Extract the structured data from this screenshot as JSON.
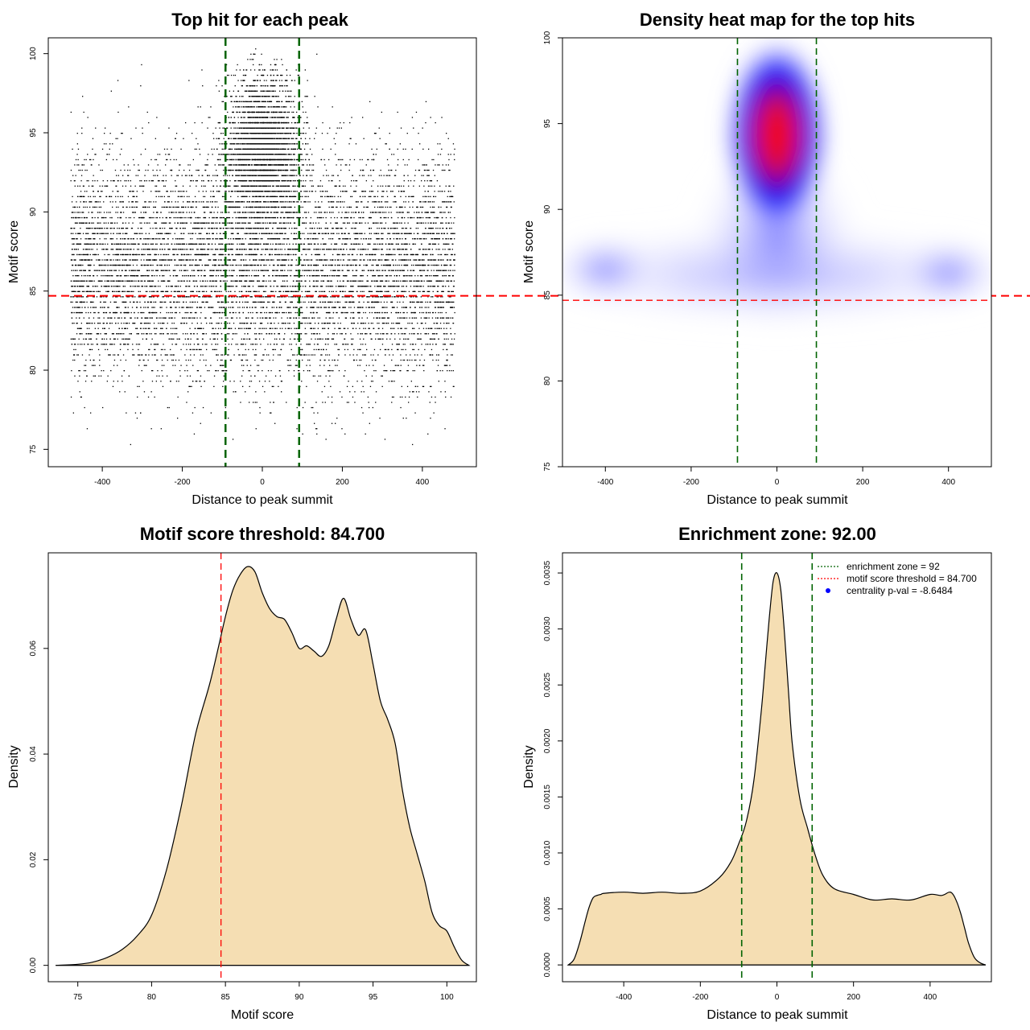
{
  "chart_data": [
    {
      "type": "scatter",
      "title": "Top hit for each peak",
      "xlabel": "Distance to peak summit",
      "ylabel": "Motif score",
      "xlim": [
        -500,
        500
      ],
      "ylim": [
        75,
        100
      ],
      "x_ticks": [
        -400,
        -200,
        0,
        200,
        400
      ],
      "y_ticks": [
        75,
        80,
        85,
        90,
        95,
        100
      ],
      "x_tick_labels": [
        "-400",
        "-200",
        "0",
        "200",
        "400"
      ],
      "y_tick_labels": [
        "75",
        "80",
        "85",
        "90",
        "95",
        "100"
      ],
      "vlines": [
        -92,
        92
      ],
      "hline": 84.7,
      "vline_color": "#006400",
      "hline_color": "#ff0000",
      "point_color": "#000000",
      "description_of_points": "approximately 20000 top motif hits; uniform background over -480..480 with a dense central cluster near 0 at scores 90-97",
      "point_density_profile": {
        "background_x_range": [
          -480,
          480
        ],
        "background_score_mode": 86.5,
        "central_cluster_x_sd": 45,
        "central_cluster_score_mode": 94
      }
    },
    {
      "type": "heatmap",
      "title": "Density heat map for the top hits",
      "xlabel": "Distance to peak summit",
      "ylabel": "Motif score",
      "xlim": [
        -500,
        500
      ],
      "ylim": [
        75,
        100
      ],
      "x_ticks": [
        -400,
        -200,
        0,
        200,
        400
      ],
      "y_ticks": [
        75,
        80,
        85,
        90,
        95,
        100
      ],
      "x_tick_labels": [
        "-400",
        "-200",
        "0",
        "200",
        "400"
      ],
      "y_tick_labels": [
        "75",
        "80",
        "85",
        "90",
        "95",
        "100"
      ],
      "vlines": [
        -92,
        92
      ],
      "hline": 84.7,
      "vline_color": "#006400",
      "hline_color": "#ff0000",
      "color_scale": [
        "#ffffff",
        "#0000ff",
        "#ff0000"
      ],
      "density_peak": {
        "x": 0,
        "y": 94.3
      },
      "secondary_density": [
        {
          "x": -400,
          "y": 86.5
        },
        {
          "x": 400,
          "y": 86.3
        }
      ]
    },
    {
      "type": "area",
      "title": "Motif score threshold: 84.700",
      "xlabel": "Motif score",
      "ylabel": "Density",
      "xlim": [
        73,
        102
      ],
      "ylim": [
        0,
        0.076
      ],
      "x_ticks": [
        75,
        80,
        85,
        90,
        95,
        100
      ],
      "y_ticks": [
        0.0,
        0.02,
        0.04,
        0.06
      ],
      "x_tick_labels": [
        "75",
        "80",
        "85",
        "90",
        "95",
        "100"
      ],
      "y_tick_labels": [
        "0.00",
        "0.02",
        "0.04",
        "0.06"
      ],
      "vline": 84.7,
      "vline_color": "#ff0000",
      "fill_color": "#f5deb3",
      "x": [
        73.5,
        75,
        76,
        77,
        78,
        79,
        80,
        81,
        82,
        83,
        84,
        85,
        85.5,
        86,
        86.5,
        87,
        87.5,
        88,
        88.5,
        89,
        89.5,
        90,
        90.5,
        91,
        91.5,
        92,
        92.5,
        93,
        93.5,
        94,
        94.5,
        95,
        95.5,
        96,
        96.5,
        97,
        97.5,
        98,
        98.5,
        99,
        99.5,
        100,
        100.5,
        101,
        101.5
      ],
      "y": [
        0.0,
        0.0002,
        0.0006,
        0.0015,
        0.003,
        0.0055,
        0.0095,
        0.018,
        0.03,
        0.044,
        0.054,
        0.066,
        0.071,
        0.074,
        0.0755,
        0.0745,
        0.0705,
        0.0675,
        0.066,
        0.0655,
        0.063,
        0.06,
        0.0605,
        0.0595,
        0.0585,
        0.0605,
        0.0655,
        0.0695,
        0.0655,
        0.0625,
        0.0635,
        0.057,
        0.05,
        0.0465,
        0.042,
        0.033,
        0.026,
        0.021,
        0.016,
        0.01,
        0.0075,
        0.0065,
        0.0035,
        0.001,
        0.0
      ]
    },
    {
      "type": "area",
      "title": "Enrichment zone: 92.00",
      "xlabel": "Distance to peak summit",
      "ylabel": "Density",
      "xlim": [
        -560,
        560
      ],
      "ylim": [
        0,
        0.0036
      ],
      "x_ticks": [
        -400,
        -200,
        0,
        200,
        400
      ],
      "y_ticks": [
        0.0,
        0.0005,
        0.001,
        0.0015,
        0.002,
        0.0025,
        0.003,
        0.0035
      ],
      "x_tick_labels": [
        "-400",
        "-200",
        "0",
        "200",
        "400"
      ],
      "y_tick_labels": [
        "0.0000",
        "0.0005",
        "0.0010",
        "0.0015",
        "0.0020",
        "0.0025",
        "0.0030",
        "0.0035"
      ],
      "vlines": [
        -92,
        92
      ],
      "vline_color": "#006400",
      "fill_color": "#f5deb3",
      "x": [
        -545,
        -530,
        -515,
        -500,
        -490,
        -480,
        -470,
        -460,
        -450,
        -400,
        -350,
        -300,
        -250,
        -200,
        -150,
        -120,
        -100,
        -80,
        -60,
        -40,
        -30,
        -20,
        -10,
        0,
        10,
        20,
        30,
        40,
        60,
        80,
        100,
        120,
        150,
        200,
        250,
        300,
        350,
        400,
        430,
        450,
        460,
        470,
        480,
        490,
        500,
        515,
        530,
        545
      ],
      "y": [
        0.0,
        5e-05,
        0.0002,
        0.0004,
        0.00052,
        0.0006,
        0.00062,
        0.00063,
        0.00064,
        0.00065,
        0.00064,
        0.00065,
        0.00064,
        0.00066,
        0.00078,
        0.00092,
        0.00108,
        0.00128,
        0.00165,
        0.0023,
        0.0027,
        0.0031,
        0.00342,
        0.0035,
        0.00335,
        0.00295,
        0.00245,
        0.00198,
        0.00148,
        0.00122,
        0.00098,
        0.0008,
        0.00068,
        0.00063,
        0.00058,
        0.00059,
        0.00058,
        0.00063,
        0.00062,
        0.00065,
        0.00063,
        0.00056,
        0.00046,
        0.00033,
        0.0002,
        7e-05,
        2e-05,
        0.0
      ],
      "legend": [
        {
          "label": "enrichment zone = 92",
          "style": "dotted-line",
          "color": "#006400"
        },
        {
          "label": "motif score threshold = 84.700",
          "style": "dotted-line",
          "color": "#ff0000"
        },
        {
          "label": "centrality p-val = -8.6484",
          "style": "point",
          "color": "#0000ff"
        }
      ],
      "legend_position": "top-right"
    }
  ]
}
